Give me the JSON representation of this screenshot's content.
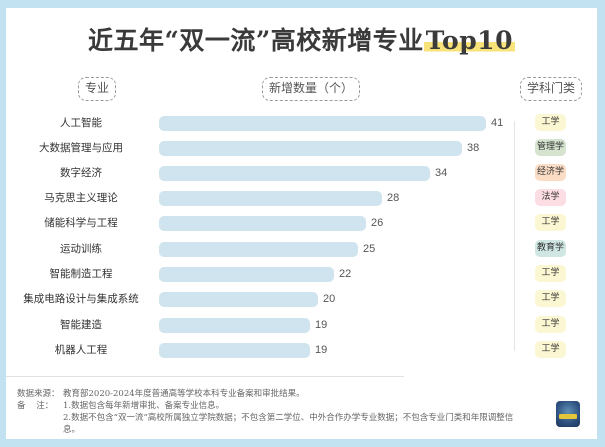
{
  "title": {
    "main": "近五年“双一流”高校新增专业",
    "highlight": "Top10"
  },
  "headers": {
    "major": "专业",
    "count": "新增数量（个）",
    "category": "学科门类"
  },
  "colors": {
    "frame": "#c3e2f1",
    "bar": "#cfe4ee",
    "title_highlight": "#f8e37a",
    "badge_engineering": "#fbf7d2",
    "badge_management": "#d5e3cf",
    "badge_economics": "#fbdcc5",
    "badge_law": "#fbdde3",
    "badge_education": "#cfe6e2"
  },
  "chart_data": {
    "type": "bar",
    "orientation": "horizontal",
    "title": "近五年“双一流”高校新增专业Top10",
    "xlabel": "新增数量（个）",
    "ylabel": "专业",
    "categories": [
      "人工智能",
      "大数据管理与应用",
      "数字经济",
      "马克思主义理论",
      "储能科学与工程",
      "运动训练",
      "智能制造工程",
      "集成电路设计与集成系统",
      "智能建造",
      "机器人工程"
    ],
    "values": [
      41,
      38,
      34,
      28,
      26,
      25,
      22,
      20,
      19,
      19
    ],
    "discipline": [
      "工学",
      "管理学",
      "经济学",
      "法学",
      "工学",
      "教育学",
      "工学",
      "工学",
      "工学",
      "工学"
    ],
    "grid": false,
    "data_labels": true
  },
  "rows": [
    {
      "label": "人工智能",
      "value": "41",
      "badge": "工学",
      "badge_color": "#fbf7d2"
    },
    {
      "label": "大数据管理与应用",
      "value": "38",
      "badge": "管理学",
      "badge_color": "#d5e3cf"
    },
    {
      "label": "数字经济",
      "value": "34",
      "badge": "经济学",
      "badge_color": "#fbdcc5"
    },
    {
      "label": "马克思主义理论",
      "value": "28",
      "badge": "法学",
      "badge_color": "#fbdde3"
    },
    {
      "label": "储能科学与工程",
      "value": "26",
      "badge": "工学",
      "badge_color": "#fbf7d2"
    },
    {
      "label": "运动训练",
      "value": "25",
      "badge": "教育学",
      "badge_color": "#cfe6e2"
    },
    {
      "label": "智能制造工程",
      "value": "22",
      "badge": "工学",
      "badge_color": "#fbf7d2"
    },
    {
      "label": "集成电路设计与集成系统",
      "value": "20",
      "badge": "工学",
      "badge_color": "#fbf7d2"
    },
    {
      "label": "智能建造",
      "value": "19",
      "badge": "工学",
      "badge_color": "#fbf7d2"
    },
    {
      "label": "机器人工程",
      "value": "19",
      "badge": "工学",
      "badge_color": "#fbf7d2"
    }
  ],
  "footer": {
    "source_label": "数据来源：",
    "source_text": "教育部2020-2024年度普通高等学校本科专业备案和审批结果。",
    "note_label": "备    注：",
    "note_1": "1.数据包含每年新增审批、备案专业信息。",
    "note_2": "2.数据不包含“双一流”高校所属独立学院数据；不包含第二学位、中外合作办学专业数据；不包含专业门类和年限调整信息。"
  }
}
